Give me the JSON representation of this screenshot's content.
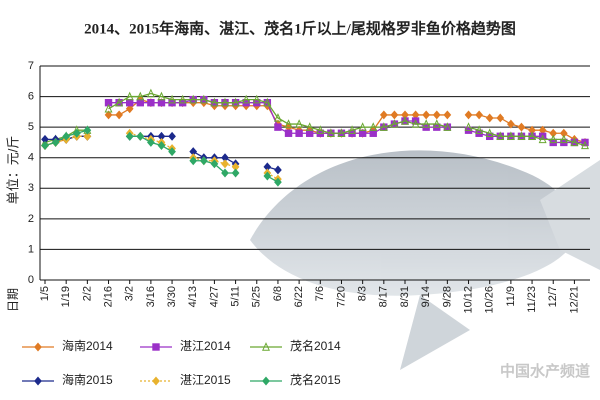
{
  "chart_data": {
    "type": "line",
    "title": "2014、2015年海南、湛江、茂名1斤以上/尾规格罗非鱼价格趋势图",
    "y_label": "单位：元/斤",
    "x_label": "日期",
    "watermark": "中国水产频道",
    "categories": [
      "1/5",
      null,
      "1/19",
      null,
      "2/2",
      null,
      "2/16",
      null,
      "3/2",
      null,
      "3/16",
      null,
      "3/30",
      null,
      "4/13",
      null,
      "4/27",
      null,
      "5/11",
      null,
      "5/25",
      null,
      "6/8",
      null,
      "6/22",
      null,
      "7/6",
      null,
      "7/20",
      null,
      "8/3",
      null,
      "8/17",
      null,
      "8/31",
      null,
      "9/14",
      null,
      "9/28",
      null,
      "10/12",
      null,
      "10/26",
      null,
      "11/9",
      null,
      "11/23",
      null,
      "12/7",
      null,
      "12/21",
      null
    ],
    "ylim": [
      0,
      7
    ],
    "yticks": [
      0,
      1,
      2,
      3,
      4,
      5,
      6,
      7
    ],
    "grid": true,
    "series": [
      {
        "name": "海南2014",
        "color": "#e07b24",
        "marker": "diamond",
        "linestyle": "solid",
        "values": [
          4.4,
          4.5,
          4.6,
          4.7,
          4.7,
          null,
          5.4,
          5.4,
          5.6,
          5.9,
          5.8,
          5.8,
          5.8,
          5.8,
          5.8,
          5.8,
          5.7,
          5.7,
          5.7,
          5.7,
          5.7,
          5.7,
          5.1,
          5.0,
          4.9,
          4.9,
          4.8,
          4.8,
          4.8,
          4.8,
          4.8,
          4.9,
          5.4,
          5.4,
          5.4,
          5.4,
          5.4,
          5.4,
          5.4,
          null,
          5.4,
          5.4,
          5.3,
          5.3,
          5.1,
          5.0,
          4.9,
          4.9,
          4.8,
          4.8,
          4.6,
          4.5
        ]
      },
      {
        "name": "湛江2014",
        "color": "#9b30c8",
        "marker": "square",
        "linestyle": "solid",
        "values": [
          null,
          null,
          null,
          null,
          null,
          null,
          5.8,
          5.8,
          5.8,
          5.8,
          5.8,
          5.8,
          5.8,
          5.8,
          5.9,
          5.9,
          5.8,
          5.8,
          5.8,
          5.8,
          5.8,
          5.8,
          5.0,
          4.8,
          4.8,
          4.8,
          4.8,
          4.8,
          4.8,
          4.8,
          4.8,
          4.8,
          5.0,
          5.1,
          5.2,
          5.2,
          5.0,
          5.0,
          5.0,
          null,
          4.9,
          4.8,
          4.7,
          4.7,
          4.7,
          4.7,
          4.7,
          4.7,
          4.5,
          4.5,
          4.5,
          4.5
        ]
      },
      {
        "name": "茂名2014",
        "color": "#6aa832",
        "marker": "triangle",
        "linestyle": "solid",
        "values": [
          4.5,
          4.6,
          4.7,
          4.9,
          4.9,
          null,
          5.6,
          5.8,
          6.0,
          6.0,
          6.1,
          6.0,
          5.9,
          5.9,
          5.9,
          5.9,
          5.8,
          5.8,
          5.8,
          5.9,
          5.9,
          5.8,
          5.3,
          5.1,
          5.1,
          5.0,
          4.9,
          4.8,
          4.8,
          4.9,
          5.0,
          5.0,
          5.0,
          5.1,
          5.2,
          5.1,
          5.1,
          5.1,
          5.0,
          null,
          5.0,
          4.9,
          4.8,
          4.7,
          4.7,
          4.7,
          4.7,
          4.6,
          4.6,
          4.6,
          4.5,
          4.4
        ]
      },
      {
        "name": "海南2015",
        "color": "#1c2a8c",
        "marker": "diamond",
        "linestyle": "solid",
        "values": [
          4.6,
          4.6,
          4.6,
          4.7,
          4.7,
          null,
          null,
          null,
          4.7,
          4.7,
          4.7,
          4.7,
          4.7,
          null,
          4.2,
          4.0,
          4.0,
          4.0,
          3.8,
          null,
          null,
          3.7,
          3.6,
          null,
          null,
          null,
          null,
          null,
          null,
          null,
          null,
          null,
          null,
          null,
          null,
          null,
          null,
          null,
          null,
          null,
          null,
          null,
          null,
          null,
          null,
          null,
          null,
          null,
          null,
          null,
          null,
          null
        ]
      },
      {
        "name": "湛江2015",
        "color": "#e8b22e",
        "marker": "diamond",
        "linestyle": "dotted",
        "values": [
          4.4,
          4.5,
          4.6,
          4.7,
          4.7,
          null,
          null,
          null,
          4.8,
          4.7,
          4.6,
          4.5,
          4.3,
          null,
          4.0,
          3.9,
          3.9,
          3.8,
          3.7,
          null,
          null,
          3.5,
          3.3,
          null,
          null,
          null,
          null,
          null,
          null,
          null,
          null,
          null,
          null,
          null,
          null,
          null,
          null,
          null,
          null,
          null,
          null,
          null,
          null,
          null,
          null,
          null,
          null,
          null,
          null,
          null,
          null,
          null
        ]
      },
      {
        "name": "茂名2015",
        "color": "#2fa866",
        "marker": "diamond",
        "linestyle": "solid",
        "values": [
          4.4,
          4.5,
          4.7,
          4.8,
          4.9,
          null,
          null,
          null,
          4.7,
          4.7,
          4.5,
          4.4,
          4.2,
          null,
          3.9,
          3.9,
          3.8,
          3.5,
          3.5,
          null,
          null,
          3.4,
          3.2,
          null,
          null,
          null,
          null,
          null,
          null,
          null,
          null,
          null,
          null,
          null,
          null,
          null,
          null,
          null,
          null,
          null,
          null,
          null,
          null,
          null,
          null,
          null,
          null,
          null,
          null,
          null,
          null,
          null
        ]
      }
    ]
  }
}
